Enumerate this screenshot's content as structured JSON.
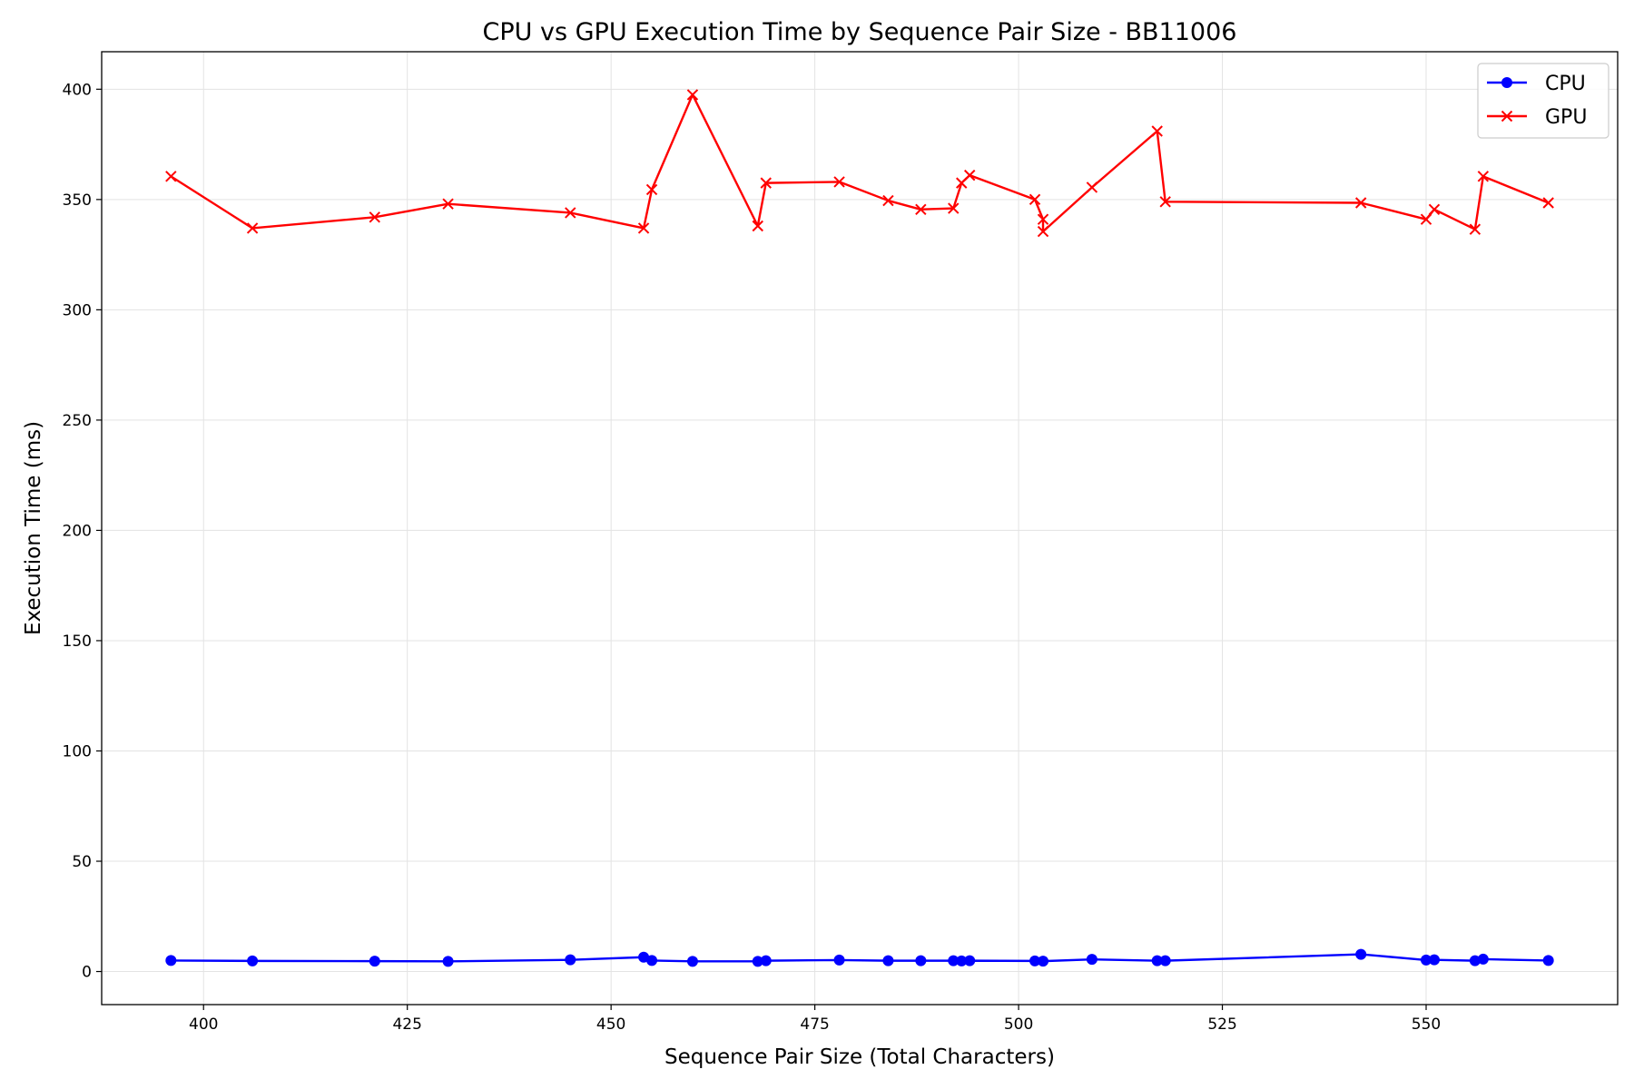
{
  "chart_data": {
    "type": "line",
    "title": "CPU vs GPU Execution Time by Sequence Pair Size - BB11006",
    "xlabel": "Sequence Pair Size (Total Characters)",
    "ylabel": "Execution Time (ms)",
    "xlim": [
      387.5,
      573.5
    ],
    "ylim": [
      -15,
      417
    ],
    "xticks": [
      400,
      425,
      450,
      475,
      500,
      525,
      550
    ],
    "yticks": [
      0,
      50,
      100,
      150,
      200,
      250,
      300,
      350,
      400
    ],
    "grid": true,
    "legend_position": "top-right",
    "series": [
      {
        "name": "CPU",
        "color": "#0000ff",
        "marker": "circle",
        "points": [
          [
            396,
            5.0
          ],
          [
            406,
            4.8
          ],
          [
            421,
            4.7
          ],
          [
            430,
            4.6
          ],
          [
            445,
            5.3
          ],
          [
            454,
            6.5
          ],
          [
            455,
            5.0
          ],
          [
            460,
            4.6
          ],
          [
            468,
            4.6
          ],
          [
            469,
            4.9
          ],
          [
            478,
            5.2
          ],
          [
            484,
            4.9
          ],
          [
            488,
            4.9
          ],
          [
            492,
            4.9
          ],
          [
            493,
            4.8
          ],
          [
            494,
            4.9
          ],
          [
            502,
            4.8
          ],
          [
            503,
            4.7
          ],
          [
            509,
            5.5
          ],
          [
            517,
            4.9
          ],
          [
            518,
            4.9
          ],
          [
            542,
            7.8
          ],
          [
            550,
            5.2
          ],
          [
            551,
            5.3
          ],
          [
            556,
            4.9
          ],
          [
            557,
            5.6
          ],
          [
            565,
            5.0
          ]
        ]
      },
      {
        "name": "GPU",
        "color": "#ff0000",
        "marker": "x",
        "points": [
          [
            396,
            360.5
          ],
          [
            406,
            337.0
          ],
          [
            421,
            342.0
          ],
          [
            430,
            348.0
          ],
          [
            445,
            344.0
          ],
          [
            454,
            337.0
          ],
          [
            455,
            354.5
          ],
          [
            460,
            397.5
          ],
          [
            468,
            338.0
          ],
          [
            469,
            357.5
          ],
          [
            478,
            358.0
          ],
          [
            484,
            349.5
          ],
          [
            488,
            345.5
          ],
          [
            492,
            346.0
          ],
          [
            493,
            357.5
          ],
          [
            494,
            361.0
          ],
          [
            502,
            350.0
          ],
          [
            503,
            341.0
          ],
          [
            503,
            335.5
          ],
          [
            509,
            355.5
          ],
          [
            517,
            381.0
          ],
          [
            518,
            349.0
          ],
          [
            542,
            348.5
          ],
          [
            550,
            341.0
          ],
          [
            551,
            345.5
          ],
          [
            556,
            336.5
          ],
          [
            557,
            360.5
          ],
          [
            565,
            348.5
          ]
        ]
      }
    ]
  }
}
